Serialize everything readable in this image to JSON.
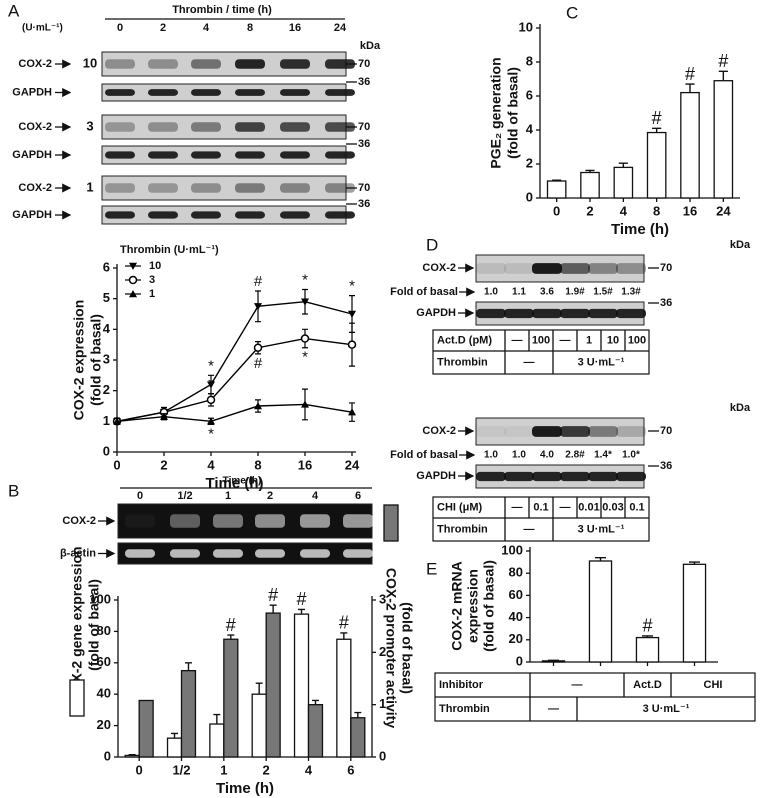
{
  "chart_data": [
    {
      "type": "line",
      "categories": [
        "0",
        "2",
        "4",
        "8",
        "16",
        "24"
      ],
      "xlabel": "Time (h)",
      "ylabel": [
        "COX-2 expression",
        "(fold of basal)"
      ],
      "ylim": [
        0,
        6
      ],
      "yticks": [
        0,
        1,
        2,
        3,
        4,
        5,
        6
      ],
      "legend_title": "Thrombin (U·mL⁻¹)",
      "series": [
        {
          "name": "10",
          "color": "#000000",
          "marker": "triangle-down",
          "values": [
            1,
            1.3,
            2.2,
            4.75,
            4.9,
            4.5
          ],
          "errors": [
            0.1,
            0.15,
            0.3,
            0.5,
            0.4,
            0.6
          ]
        },
        {
          "name": "3",
          "color": "#000000",
          "marker": "circle-open",
          "values": [
            1,
            1.3,
            1.7,
            3.4,
            3.7,
            3.5
          ],
          "errors": [
            0.1,
            0.15,
            0.2,
            0.2,
            0.3,
            0.7
          ]
        },
        {
          "name": "1",
          "color": "#000000",
          "marker": "triangle-up",
          "values": [
            1,
            1.15,
            1.0,
            1.5,
            1.55,
            1.3
          ],
          "errors": [
            0.1,
            0.1,
            0.1,
            0.2,
            0.5,
            0.3
          ]
        }
      ],
      "annotations": [
        {
          "text": "*",
          "series": 0,
          "category": 2,
          "position": "above"
        },
        {
          "text": "#",
          "series": 0,
          "category": 3,
          "position": "above"
        },
        {
          "text": "*",
          "series": 0,
          "category": 4,
          "position": "above"
        },
        {
          "text": "*",
          "series": 0,
          "category": 5,
          "position": "above"
        },
        {
          "text": "*",
          "series": 1,
          "category": 2,
          "position": "above"
        },
        {
          "text": "#",
          "series": 1,
          "category": 3,
          "position": "below"
        },
        {
          "text": "*",
          "series": 1,
          "category": 4,
          "position": "below"
        },
        {
          "text": "*",
          "series": 2,
          "category": 2,
          "position": "below"
        }
      ]
    },
    {
      "type": "bar",
      "categories": [
        "0",
        "1/2",
        "1",
        "2",
        "4",
        "6"
      ],
      "xlabel": "Time (h)",
      "ylabel": [
        "COX-2 gene expression",
        "(fold of basal)"
      ],
      "y2label": [
        "COX-2 promoter activity",
        "(fold of basal)"
      ],
      "ylim": [
        0,
        100
      ],
      "yticks": [
        0,
        20,
        40,
        60,
        80,
        100
      ],
      "y2lim": [
        0,
        3
      ],
      "y2ticks": [
        0,
        1,
        2,
        3
      ],
      "series": [
        {
          "color": "#ffffff",
          "values": [
            1,
            12,
            21,
            40,
            91,
            75
          ],
          "errors": [
            0.5,
            3,
            6,
            7,
            3,
            4
          ]
        },
        {
          "color": "#777777",
          "axis": "y2",
          "values": [
            1.08,
            1.65,
            2.25,
            2.75,
            1.0,
            0.75
          ],
          "errors": [
            0,
            0.15,
            0.08,
            0.15,
            0.08,
            0.1
          ]
        }
      ],
      "annotations": [
        {
          "text": "#",
          "series": 1,
          "category": 2,
          "position": "above"
        },
        {
          "text": "#",
          "series": 1,
          "category": 3,
          "position": "above"
        },
        {
          "text": "#",
          "series": 0,
          "category": 4,
          "position": "above"
        },
        {
          "text": "#",
          "series": 0,
          "category": 5,
          "position": "above"
        }
      ]
    },
    {
      "type": "bar",
      "categories": [
        "0",
        "2",
        "4",
        "8",
        "16",
        "24"
      ],
      "xlabel": "Time (h)",
      "ylabel": [
        "PGE₂ generation",
        "(fold of basal)"
      ],
      "ylim": [
        0,
        10
      ],
      "yticks": [
        0,
        2,
        4,
        6,
        8,
        10
      ],
      "series": [
        {
          "color": "#ffffff",
          "values": [
            1,
            1.5,
            1.8,
            3.85,
            6.2,
            6.9
          ],
          "errors": [
            0.05,
            0.12,
            0.25,
            0.25,
            0.5,
            0.55
          ]
        }
      ],
      "annotations": [
        {
          "text": "#",
          "series": 0,
          "category": 3,
          "position": "above"
        },
        {
          "text": "#",
          "series": 0,
          "category": 4,
          "position": "above"
        },
        {
          "text": "#",
          "series": 0,
          "category": 5,
          "position": "above"
        }
      ]
    },
    {
      "type": "bar",
      "categories": [
        null,
        null,
        null,
        null
      ],
      "ylabel": [
        "COX-2 mRNA",
        "expression",
        "(fold of basal)"
      ],
      "ylim": [
        0,
        100
      ],
      "yticks": [
        0,
        20,
        40,
        60,
        80,
        100
      ],
      "series": [
        {
          "color": "#ffffff",
          "values": [
            1,
            91,
            22,
            88
          ],
          "errors": [
            0.5,
            3,
            1.5,
            2
          ]
        }
      ],
      "annotations": [
        {
          "text": "#",
          "series": 0,
          "category": 2,
          "position": "above"
        }
      ]
    }
  ],
  "figure": {
    "panel_labels": [
      "A",
      "B",
      "C",
      "D",
      "E"
    ],
    "blot_a": {
      "header": "Thrombin / time (h)",
      "unit": "(U·mL⁻¹)",
      "lanes": [
        "0",
        "2",
        "4",
        "8",
        "16",
        "24"
      ],
      "kda": "kDa",
      "rows": [
        {
          "label": "COX-2",
          "dose": "10",
          "size": "70"
        },
        {
          "label": "GAPDH",
          "size": "36"
        },
        {
          "label": "COX-2",
          "dose": "3",
          "size": "70"
        },
        {
          "label": "GAPDH",
          "size": "36"
        },
        {
          "label": "COX-2",
          "dose": "1",
          "size": "70"
        },
        {
          "label": "GAPDH",
          "size": "36"
        }
      ]
    },
    "blot_b": {
      "header": "Time (h)",
      "lanes": [
        "0",
        "1/2",
        "1",
        "2",
        "4",
        "6"
      ],
      "rows": [
        {
          "label": "COX-2"
        },
        {
          "label": "β-actin"
        }
      ]
    },
    "blot_d": [
      {
        "kda": "kDa",
        "cox": "COX-2",
        "cox_size": "70",
        "fold_label": "Fold of basal",
        "folds": [
          "1.0",
          "1.1",
          "3.6",
          "1.9#",
          "1.5#",
          "1.3#"
        ],
        "gapdh": "GAPDH",
        "gapdh_size": "36",
        "table": [
          [
            "Act.D (pM)",
            "—",
            "100",
            "—",
            "1",
            "10",
            "100"
          ],
          [
            "Thrombin",
            "—",
            "3 U·mL⁻¹"
          ]
        ]
      },
      {
        "kda": "kDa",
        "cox": "COX-2",
        "cox_size": "70",
        "fold_label": "Fold of basal",
        "folds": [
          "1.0",
          "1.0",
          "4.0",
          "2.8#",
          "1.4*",
          "1.0*"
        ],
        "gapdh": "GAPDH",
        "gapdh_size": "36",
        "table": [
          [
            "CHI (μM)",
            "—",
            "0.1",
            "—",
            "0.01",
            "0.03",
            "0.1"
          ],
          [
            "Thrombin",
            "—",
            "3 U·mL⁻¹"
          ]
        ]
      }
    ],
    "table_e": [
      [
        "Inhibitor",
        "—",
        "Act.D",
        "CHI"
      ],
      [
        "Thrombin",
        "—",
        "3 U·mL⁻¹"
      ]
    ]
  }
}
